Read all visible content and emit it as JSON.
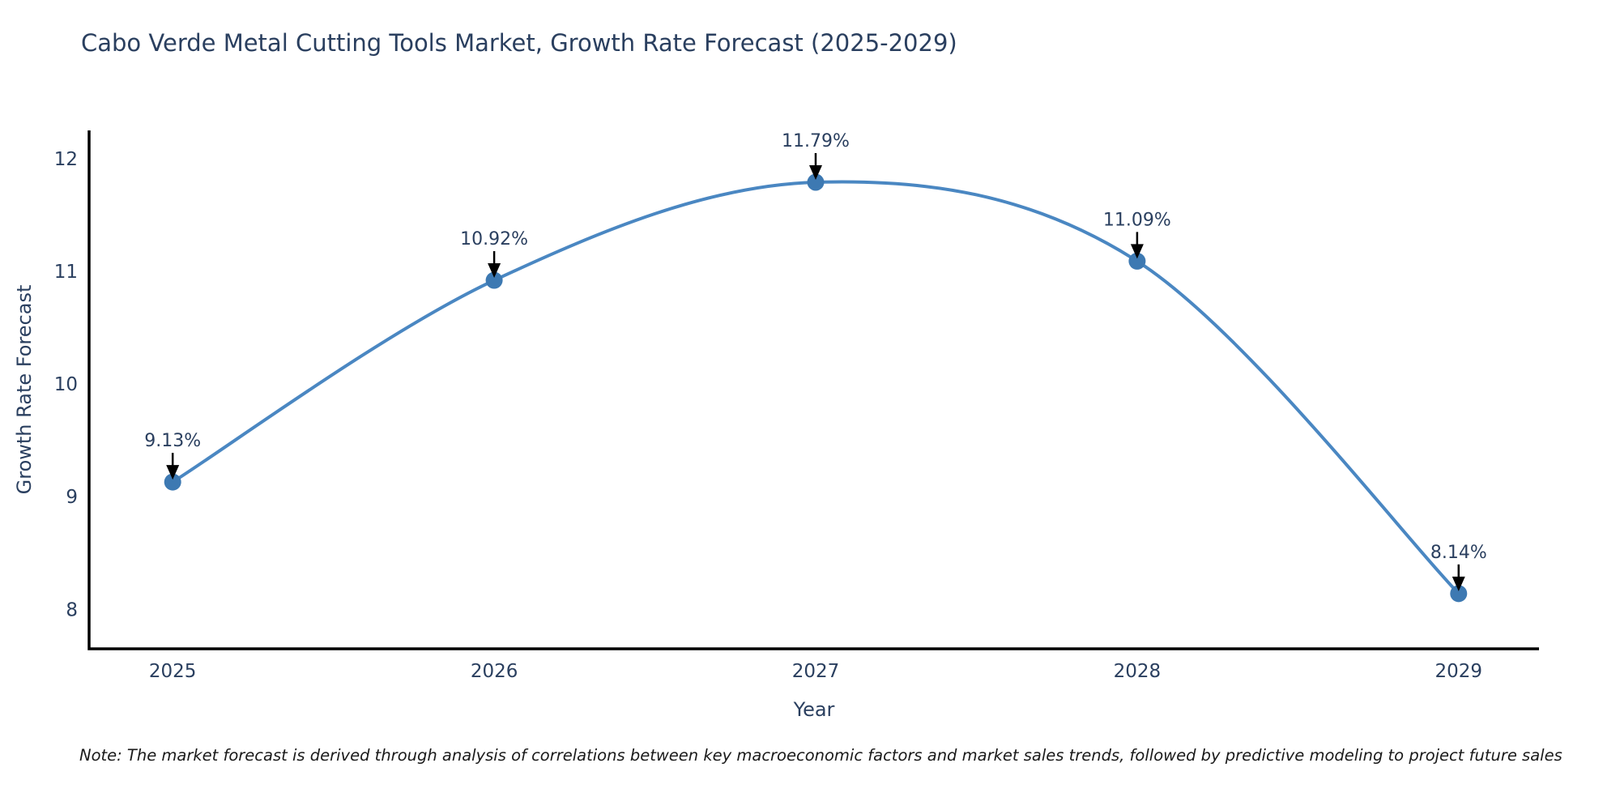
{
  "chart_data": {
    "type": "line",
    "title": "Cabo Verde Metal Cutting Tools Market, Growth Rate Forecast (2025-2029)",
    "xlabel": "Year",
    "ylabel": "Growth Rate Forecast",
    "x": [
      2025,
      2026,
      2027,
      2028,
      2029
    ],
    "values": [
      9.13,
      10.92,
      11.79,
      11.09,
      8.14
    ],
    "point_labels": [
      "9.13%",
      "10.92%",
      "11.79%",
      "11.09%",
      "8.14%"
    ],
    "series": [
      {
        "name": "Growth Rate Forecast",
        "values": [
          9.13,
          10.92,
          11.79,
          11.09,
          8.14
        ]
      }
    ],
    "xticks": [
      "2025",
      "2026",
      "2027",
      "2028",
      "2029"
    ],
    "yticks": [
      8,
      9,
      10,
      11,
      12
    ],
    "xlim": [
      2024.74,
      2029.25
    ],
    "ylim": [
      7.65,
      12.25
    ],
    "grid": false,
    "legend_position": "none",
    "line_shape": "spline",
    "annotation_style": "value-with-down-arrow",
    "colors": {
      "line": "#4a87c2",
      "marker": "#3d79b2",
      "axis": "#000000",
      "tick_text": "#2a3f5f",
      "annotation_text": "#2a3f5f",
      "arrow": "#000000",
      "background": "#ffffff"
    }
  },
  "note": {
    "text": "Note: The market forecast is derived through analysis of correlations between key macroeconomic factors and market sales trends, followed by predictive modeling to project future sales"
  }
}
